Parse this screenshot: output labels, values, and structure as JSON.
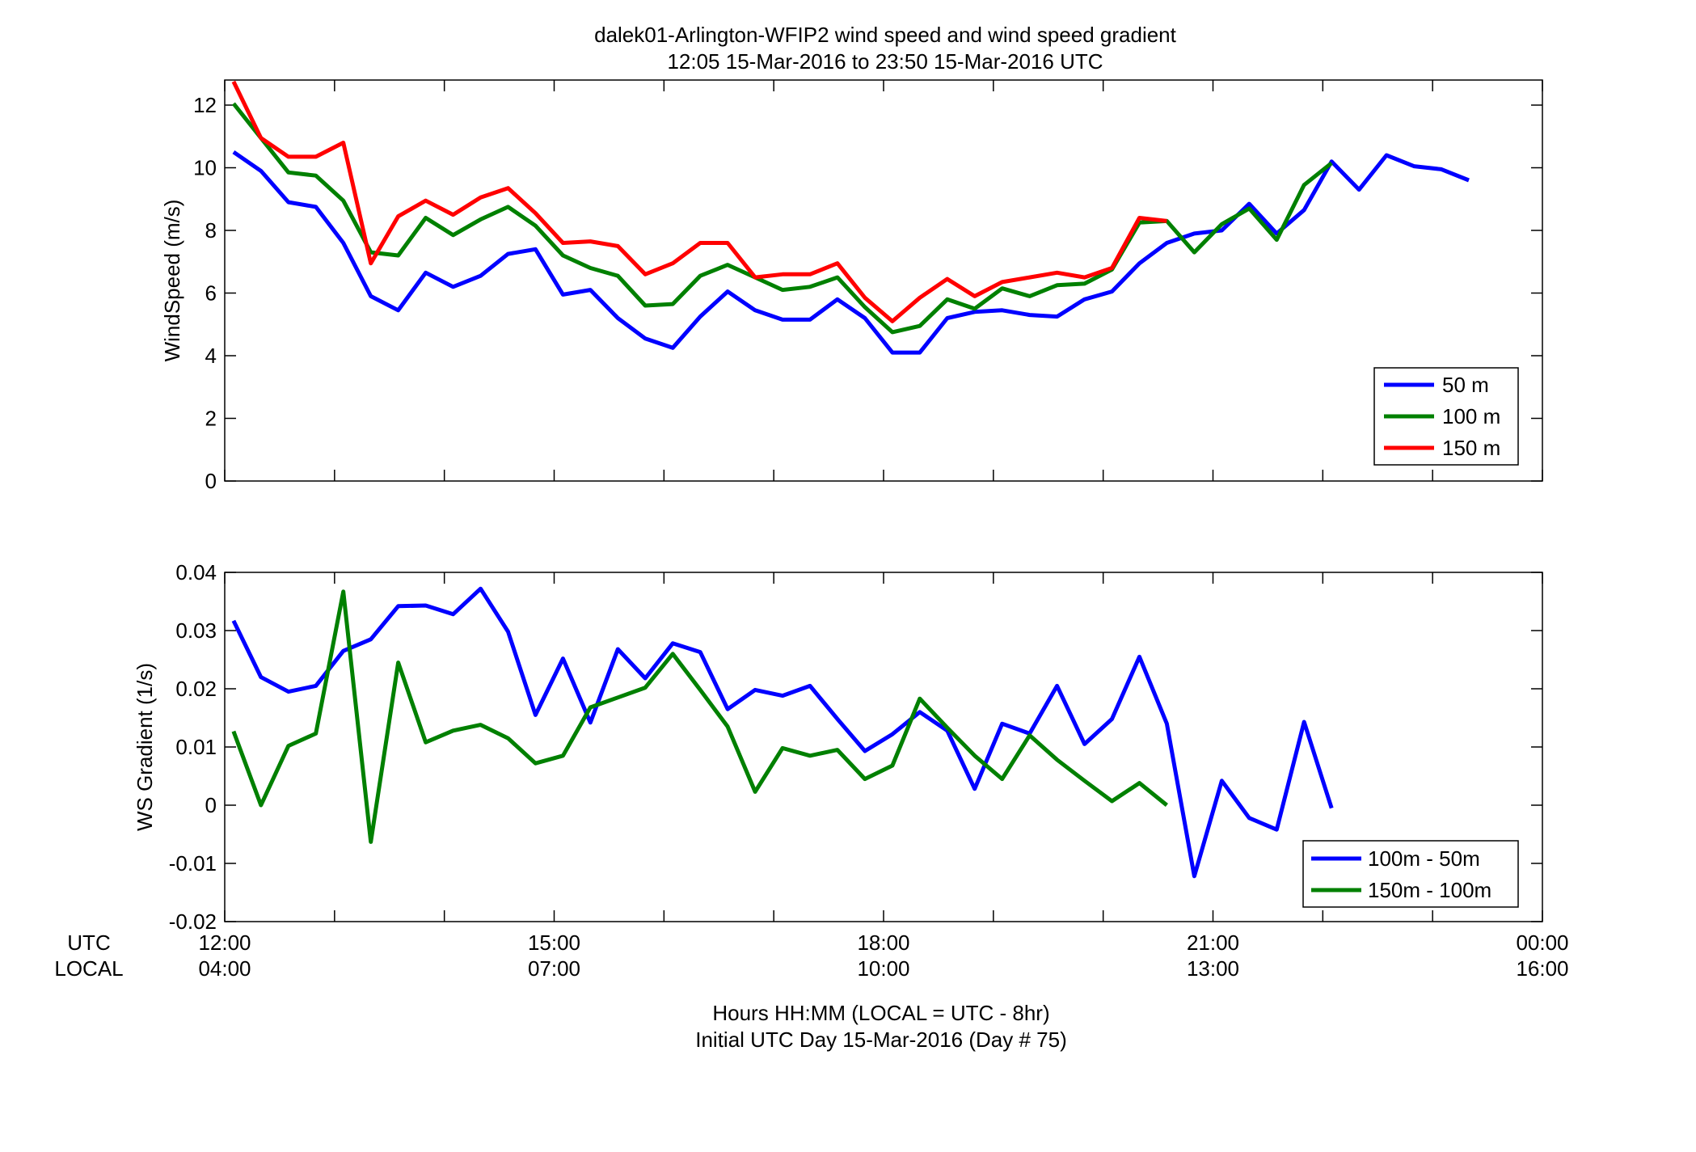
{
  "figure": {
    "title_line1": "dalek01-Arlington-WFIP2  wind speed and wind speed gradient",
    "title_line2": "12:05 15-Mar-2016 to 23:50 15-Mar-2016  UTC",
    "xlabel_line1": "Hours HH:MM  (LOCAL = UTC - 8hr)",
    "xlabel_line2": "Initial UTC Day 15-Mar-2016 (Day # 75)",
    "row_label_utc": "UTC",
    "row_label_local": "LOCAL"
  },
  "chart_data": [
    {
      "type": "line",
      "title": "",
      "ylabel": "WindSpeed (m/s)",
      "xlabel": "",
      "ylim": [
        0,
        12.8
      ],
      "yticks": [
        0,
        2,
        4,
        6,
        8,
        10,
        12
      ],
      "xlim": [
        12.0,
        24.0
      ],
      "grid": false,
      "legend_position": "bottom-right",
      "x_hours_utc": [
        12.08,
        12.33,
        12.58,
        12.83,
        13.08,
        13.33,
        13.58,
        13.83,
        14.08,
        14.33,
        14.58,
        14.83,
        15.08,
        15.33,
        15.58,
        15.83,
        16.08,
        16.33,
        16.58,
        16.83,
        17.08,
        17.33,
        17.58,
        17.83,
        18.08,
        18.33,
        18.58,
        18.83,
        19.08,
        19.33,
        19.58,
        19.83,
        20.08,
        20.33,
        20.58,
        20.83,
        21.08,
        21.33,
        21.58,
        21.83,
        22.08,
        22.33,
        22.58,
        22.83,
        23.08,
        23.33
      ],
      "series": [
        {
          "name": "50 m",
          "color": "#0000ff",
          "values": [
            10.5,
            9.9,
            8.9,
            8.75,
            7.6,
            5.9,
            5.45,
            6.65,
            6.2,
            6.55,
            7.25,
            7.4,
            5.95,
            6.1,
            5.2,
            4.55,
            4.25,
            5.25,
            6.05,
            5.45,
            5.15,
            5.15,
            5.8,
            5.2,
            4.1,
            4.1,
            5.2,
            5.4,
            5.45,
            5.3,
            5.25,
            5.8,
            6.05,
            6.95,
            7.6,
            7.9,
            8.0,
            8.85,
            7.9,
            8.65,
            10.2,
            9.3,
            10.4,
            10.05,
            9.95,
            9.6
          ]
        },
        {
          "name": "100 m",
          "color": "#008000",
          "values": [
            12.05,
            10.95,
            9.85,
            9.75,
            8.95,
            7.3,
            7.2,
            8.4,
            7.85,
            8.35,
            8.75,
            8.15,
            7.2,
            6.8,
            6.55,
            5.6,
            5.65,
            6.55,
            6.9,
            6.5,
            6.1,
            6.2,
            6.5,
            5.55,
            4.75,
            4.95,
            5.8,
            5.5,
            6.15,
            5.9,
            6.25,
            6.3,
            6.75,
            8.25,
            8.3,
            7.3,
            8.2,
            8.7,
            7.7,
            9.45,
            10.15,
            null,
            null,
            null,
            null,
            null
          ]
        },
        {
          "name": "150 m",
          "color": "#ff0000",
          "values": [
            12.75,
            10.95,
            10.35,
            10.35,
            10.8,
            6.95,
            8.45,
            8.95,
            8.5,
            9.05,
            9.35,
            8.55,
            7.6,
            7.65,
            7.5,
            6.6,
            6.95,
            7.6,
            7.6,
            6.5,
            6.6,
            6.6,
            6.95,
            5.85,
            5.1,
            5.85,
            6.45,
            5.9,
            6.35,
            6.5,
            6.65,
            6.5,
            6.8,
            8.4,
            8.3,
            null,
            null,
            null,
            null,
            null,
            null,
            null,
            null,
            null,
            null,
            null
          ]
        }
      ]
    },
    {
      "type": "line",
      "title": "",
      "ylabel": "WS Gradient (1/s)",
      "xlabel": "",
      "ylim": [
        -0.02,
        0.04
      ],
      "yticks": [
        -0.02,
        -0.01,
        0,
        0.01,
        0.02,
        0.03,
        0.04
      ],
      "ytick_labels": [
        "-0.02",
        "-0.01",
        "0",
        "0.01",
        "0.02",
        "0.03",
        "0.04"
      ],
      "xlim": [
        12.0,
        24.0
      ],
      "grid": false,
      "legend_position": "bottom-right",
      "x_hours_utc": [
        12.08,
        12.33,
        12.58,
        12.83,
        13.08,
        13.33,
        13.58,
        13.83,
        14.08,
        14.33,
        14.58,
        14.83,
        15.08,
        15.33,
        15.58,
        15.83,
        16.08,
        16.33,
        16.58,
        16.83,
        17.08,
        17.33,
        17.58,
        17.83,
        18.08,
        18.33,
        18.58,
        18.83,
        19.08,
        19.33,
        19.58,
        19.83,
        20.08,
        20.33,
        20.58,
        20.83,
        21.08,
        21.33,
        21.58,
        21.83,
        22.08
      ],
      "series": [
        {
          "name": "100m - 50m",
          "color": "#0000ff",
          "values": [
            0.0317,
            0.022,
            0.0195,
            0.0205,
            0.0265,
            0.0285,
            0.0342,
            0.0343,
            0.0328,
            0.0372,
            0.0298,
            0.0155,
            0.0252,
            0.0142,
            0.0268,
            0.0218,
            0.0278,
            0.0263,
            0.0165,
            0.0198,
            0.0188,
            0.0205,
            0.0148,
            0.0093,
            0.0122,
            0.016,
            0.0128,
            0.0028,
            0.014,
            0.0123,
            0.0205,
            0.0105,
            0.0148,
            0.0255,
            0.014,
            -0.0122,
            0.0042,
            -0.0022,
            -0.0042,
            0.0143,
            -0.0005
          ]
        },
        {
          "name": "150m - 100m",
          "color": "#008000",
          "values": [
            0.0127,
            0.0,
            0.0102,
            0.0123,
            0.0367,
            -0.0063,
            0.0245,
            0.0108,
            0.0128,
            0.0138,
            0.0115,
            0.0072,
            0.0085,
            0.0168,
            0.0185,
            0.0202,
            0.026,
            0.0198,
            0.0135,
            0.0023,
            0.0098,
            0.0085,
            0.0095,
            0.0045,
            0.0068,
            0.0183,
            0.0133,
            0.0085,
            0.0045,
            0.012,
            0.0078,
            0.0042,
            0.0007,
            0.0038,
            0.0,
            null,
            null,
            null,
            null,
            null,
            null
          ]
        }
      ]
    }
  ],
  "x_axis": {
    "ticks_hours_utc": [
      12,
      15,
      18,
      21,
      24
    ],
    "utc_labels": [
      "12:00",
      "15:00",
      "18:00",
      "21:00",
      "00:00"
    ],
    "local_labels": [
      "04:00",
      "07:00",
      "10:00",
      "13:00",
      "16:00"
    ]
  }
}
